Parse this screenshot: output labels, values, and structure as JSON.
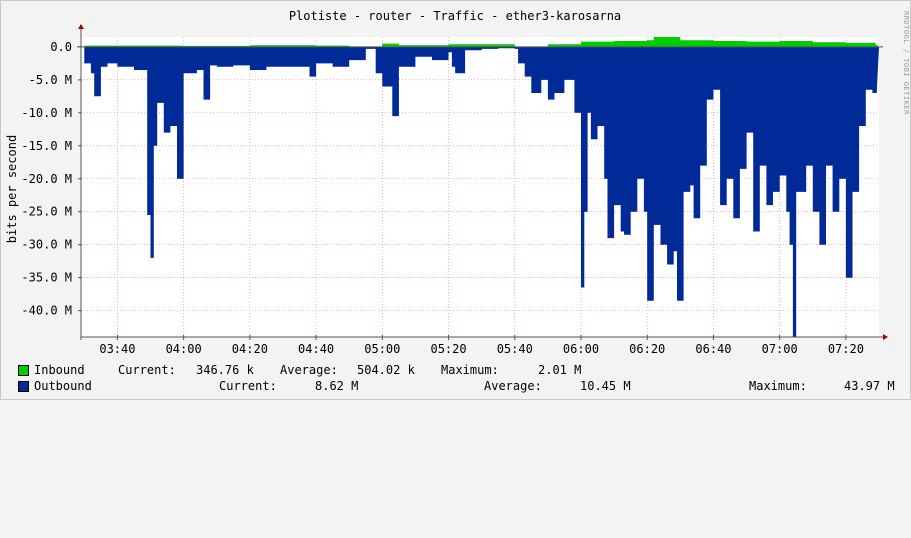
{
  "title": "Plotiste - router - Traffic - ether3-karosarna",
  "side_text": "RRDTOOL / TOBI OETIKER",
  "chart_data": {
    "type": "area",
    "ylabel": "bits per second",
    "ylim": [
      -44,
      1.5
    ],
    "y_ticks": [
      {
        "v": 0,
        "label": "0.0"
      },
      {
        "v": -5,
        "label": "-5.0 M"
      },
      {
        "v": -10,
        "label": "-10.0 M"
      },
      {
        "v": -15,
        "label": "-15.0 M"
      },
      {
        "v": -20,
        "label": "-20.0 M"
      },
      {
        "v": -25,
        "label": "-25.0 M"
      },
      {
        "v": -30,
        "label": "-30.0 M"
      },
      {
        "v": -35,
        "label": "-35.0 M"
      },
      {
        "v": -40,
        "label": "-40.0 M"
      }
    ],
    "xlim": [
      "03:29",
      "07:30"
    ],
    "x_ticks": [
      "03:40",
      "04:00",
      "04:20",
      "04:40",
      "05:00",
      "05:20",
      "05:40",
      "06:00",
      "06:20",
      "06:40",
      "07:00",
      "07:20"
    ],
    "series": [
      {
        "name": "Inbound",
        "color": "#00cc00",
        "x": [
          "03:30",
          "04:00",
          "04:20",
          "04:40",
          "04:50",
          "05:00",
          "05:05",
          "05:20",
          "05:40",
          "05:50",
          "06:00",
          "06:10",
          "06:20",
          "06:22",
          "06:30",
          "06:40",
          "06:50",
          "07:00",
          "07:10",
          "07:20",
          "07:29"
        ],
        "y": [
          0.2,
          0.15,
          0.25,
          0.2,
          0.05,
          0.5,
          0.25,
          0.4,
          0.05,
          0.4,
          0.8,
          0.9,
          1.0,
          1.5,
          1.0,
          0.9,
          0.8,
          0.9,
          0.7,
          0.6,
          0.3
        ]
      },
      {
        "name": "Outbound",
        "color": "#002a97",
        "x": [
          "03:30",
          "03:32",
          "03:33",
          "03:35",
          "03:37",
          "03:40",
          "03:45",
          "03:49",
          "03:50",
          "03:51",
          "03:52",
          "03:54",
          "03:56",
          "03:58",
          "04:00",
          "04:02",
          "04:04",
          "04:06",
          "04:08",
          "04:10",
          "04:15",
          "04:20",
          "04:25",
          "04:30",
          "04:35",
          "04:38",
          "04:40",
          "04:45",
          "04:50",
          "04:55",
          "04:58",
          "05:00",
          "05:03",
          "05:05",
          "05:08",
          "05:10",
          "05:15",
          "05:20",
          "05:21",
          "05:22",
          "05:25",
          "05:30",
          "05:35",
          "05:40",
          "05:41",
          "05:43",
          "05:45",
          "05:48",
          "05:50",
          "05:52",
          "05:55",
          "05:58",
          "06:00",
          "06:01",
          "06:02",
          "06:03",
          "06:05",
          "06:07",
          "06:08",
          "06:10",
          "06:12",
          "06:13",
          "06:15",
          "06:17",
          "06:19",
          "06:20",
          "06:22",
          "06:24",
          "06:26",
          "06:28",
          "06:29",
          "06:31",
          "06:33",
          "06:34",
          "06:36",
          "06:38",
          "06:40",
          "06:42",
          "06:44",
          "06:46",
          "06:48",
          "06:50",
          "06:52",
          "06:54",
          "06:56",
          "06:58",
          "07:00",
          "07:02",
          "07:03",
          "07:04",
          "07:05",
          "07:08",
          "07:10",
          "07:12",
          "07:14",
          "07:16",
          "07:18",
          "07:20",
          "07:22",
          "07:24",
          "07:26",
          "07:28",
          "07:29"
        ],
        "y": [
          -2.5,
          -4.0,
          -7.5,
          -3.0,
          -2.5,
          -3.0,
          -3.5,
          -25.5,
          -32.0,
          -15.0,
          -8.5,
          -13.0,
          -12.0,
          -20.0,
          -4.0,
          -4.0,
          -3.5,
          -8.0,
          -2.8,
          -3.0,
          -2.8,
          -3.5,
          -3.0,
          -3.0,
          -3.0,
          -4.5,
          -2.5,
          -3.0,
          -2.0,
          -0.3,
          -4.0,
          -6.0,
          -10.5,
          -3.0,
          -3.0,
          -1.5,
          -2.0,
          -0.8,
          -3.0,
          -4.0,
          -0.5,
          -0.3,
          -0.2,
          -0.3,
          -2.5,
          -4.5,
          -7.0,
          -5.0,
          -8.0,
          -7.0,
          -5.0,
          -10.0,
          -36.5,
          -25.0,
          -10.0,
          -14.0,
          -12.0,
          -20.0,
          -29.0,
          -24.0,
          -28.0,
          -28.5,
          -25.0,
          -20.0,
          -25.0,
          -38.5,
          -27.0,
          -30.0,
          -33.0,
          -31.0,
          -38.5,
          -22.0,
          -21.0,
          -26.0,
          -18.0,
          -8.0,
          -6.5,
          -24.0,
          -20.0,
          -26.0,
          -18.5,
          -13.0,
          -28.0,
          -18.0,
          -24.0,
          -22.0,
          -19.5,
          -25.0,
          -30.0,
          -44.0,
          -22.0,
          -18.0,
          -25.0,
          -30.0,
          -18.0,
          -25.0,
          -20.0,
          -35.0,
          -22.0,
          -12.0,
          -6.5,
          -7.0,
          -7.0
        ]
      }
    ]
  },
  "legend": {
    "inbound": {
      "label": "Inbound",
      "current_label": "Current:",
      "current": "346.76 k",
      "average_label": "Average:",
      "average": "504.02 k",
      "maximum_label": "Maximum:",
      "maximum": "2.01 M"
    },
    "outbound": {
      "label": "Outbound",
      "current_label": "Current:",
      "current": "8.62 M",
      "average_label": "Average:",
      "average": "10.45 M",
      "maximum_label": "Maximum:",
      "maximum": "43.97 M"
    }
  }
}
